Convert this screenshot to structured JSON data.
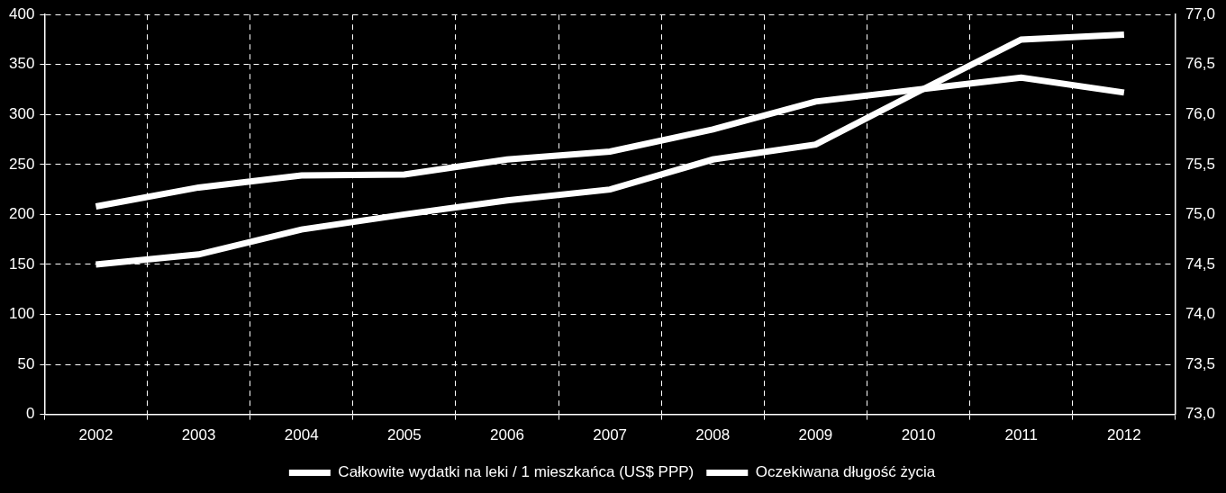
{
  "chart_data": {
    "type": "line",
    "categories": [
      "2002",
      "2003",
      "2004",
      "2005",
      "2006",
      "2007",
      "2008",
      "2009",
      "2010",
      "2011",
      "2012"
    ],
    "series": [
      {
        "name": "Całkowite wydatki na leki / 1 mieszkańca (US$ PPP)",
        "color": "#ffffff",
        "axis": "y",
        "values": [
          208,
          227,
          239,
          240,
          255,
          263,
          285,
          313,
          325,
          337,
          322
        ]
      },
      {
        "name": "Oczekiwana długość życia",
        "color": "#ffffff",
        "axis": "y2",
        "values": [
          74.5,
          74.6,
          74.85,
          75.0,
          75.14,
          75.25,
          75.55,
          75.7,
          76.23,
          76.75,
          76.8
        ]
      }
    ],
    "ylim": [
      0,
      400
    ],
    "yticks": [
      0,
      50,
      100,
      150,
      200,
      250,
      300,
      350,
      400
    ],
    "y2lim": [
      73,
      77
    ],
    "y2ticks": [
      {
        "value": 73,
        "label": "73,0"
      },
      {
        "value": 73.5,
        "label": "73,5"
      },
      {
        "value": 74,
        "label": "74,0"
      },
      {
        "value": 74.5,
        "label": "74,5"
      },
      {
        "value": 75,
        "label": "75,0"
      },
      {
        "value": 75.5,
        "label": "75,5"
      },
      {
        "value": 76,
        "label": "76,0"
      },
      {
        "value": 76.5,
        "label": "76,5"
      },
      {
        "value": 77,
        "label": "77,0"
      }
    ],
    "grid": true,
    "legend": "bottom"
  }
}
